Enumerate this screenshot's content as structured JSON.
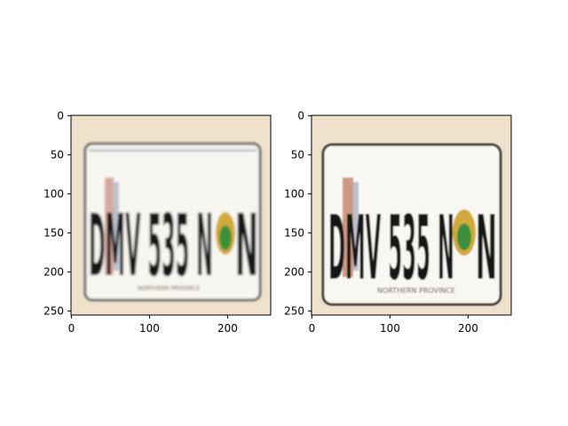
{
  "figure": {
    "panels": [
      {
        "image": {
          "content": "license-plate-photo",
          "plate_text": "DMV 535 N",
          "province_text": "NORTHERN PROVINCE"
        },
        "axes": {
          "xticks": [
            "0",
            "100",
            "200"
          ],
          "yticks": [
            "0",
            "50",
            "100",
            "150",
            "200",
            "250"
          ]
        }
      },
      {
        "image": {
          "content": "license-plate-photo",
          "plate_text": "DMV 535 N",
          "province_text": "NORTHERN PROVINCE"
        },
        "axes": {
          "xticks": [
            "0",
            "100",
            "200"
          ],
          "yticks": [
            "0",
            "50",
            "100",
            "150",
            "200",
            "250"
          ]
        }
      }
    ]
  },
  "colors": {
    "background_beige": "#efe1cc",
    "plate_white": "#f8f7f2",
    "plate_border": "#4a4a48",
    "characters": "#151515",
    "emblem_green": "#3d8f3a",
    "emblem_gold": "#d2a93a"
  }
}
